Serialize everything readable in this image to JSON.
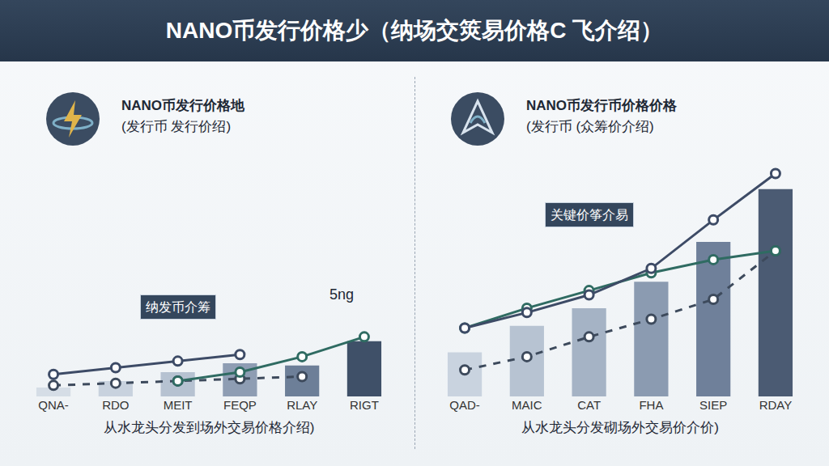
{
  "title": "NANO币发行价格少（纳场交筴易价格C 飞介绍）",
  "chart_data": [
    {
      "type": "bar",
      "title": "NANO币发行价格地",
      "subtitle": "(发行币 发行价绍)",
      "xlabel": "从水龙头分发到场外交易价格介绍)",
      "annotations": [
        "纳发币介筹",
        "5ng"
      ],
      "categories": [
        "QNA-",
        "RDO",
        "MEIT",
        "FEQP",
        "RLAY",
        "RIGT"
      ],
      "values": [
        4,
        7,
        11,
        15,
        14,
        25
      ],
      "colors": [
        "#d5dde6",
        "#c8d2de",
        "#b6c2d1",
        "#8e9db3",
        "#6d7f98",
        "#3f5068"
      ],
      "series": [
        {
          "type": "line",
          "color": "#3d4a5c",
          "line_style": "dash",
          "marker": "circle",
          "values": [
            5,
            6,
            7,
            8,
            9,
            null
          ]
        },
        {
          "type": "line",
          "color": "#2f6b62",
          "line_style": "solid",
          "marker": "circle",
          "values": [
            null,
            null,
            7,
            11,
            18,
            27
          ]
        },
        {
          "type": "line",
          "color": "#3d4b66",
          "line_style": "solid",
          "marker": "circle",
          "values": [
            10,
            13,
            16,
            19,
            null,
            null
          ]
        }
      ],
      "ylim": [
        0,
        110
      ],
      "grid": false,
      "tick_labels": "x"
    },
    {
      "type": "bar",
      "title": "NANO币发行币价格价格",
      "subtitle": "(发行币 (众筹价介绍)",
      "xlabel": "从水龙头分发砌场外交易价介价)",
      "annotations": [
        "关键价筝介易"
      ],
      "categories": [
        "QAD-",
        "MAIC",
        "CAT",
        "FHA",
        "SIEP",
        "RDAY"
      ],
      "values": [
        20,
        32,
        40,
        52,
        70,
        94
      ],
      "colors": [
        "#c9d3df",
        "#b7c3d2",
        "#a5b3c5",
        "#8b9bb1",
        "#6f809a",
        "#4b5b73"
      ],
      "series": [
        {
          "type": "line",
          "color": "#3d4a5c",
          "line_style": "dash",
          "marker": "circle",
          "values": [
            12,
            18,
            27,
            35,
            44,
            66
          ]
        },
        {
          "type": "line",
          "color": "#2f6b62",
          "line_style": "solid",
          "marker": "circle",
          "values": [
            31,
            40,
            48,
            56,
            62,
            66
          ]
        },
        {
          "type": "line",
          "color": "#3d4b66",
          "line_style": "solid",
          "marker": "circle",
          "values": [
            31,
            38,
            46,
            58,
            80,
            101
          ]
        }
      ],
      "ylim": [
        0,
        110
      ],
      "grid": false,
      "tick_labels": "x"
    }
  ]
}
